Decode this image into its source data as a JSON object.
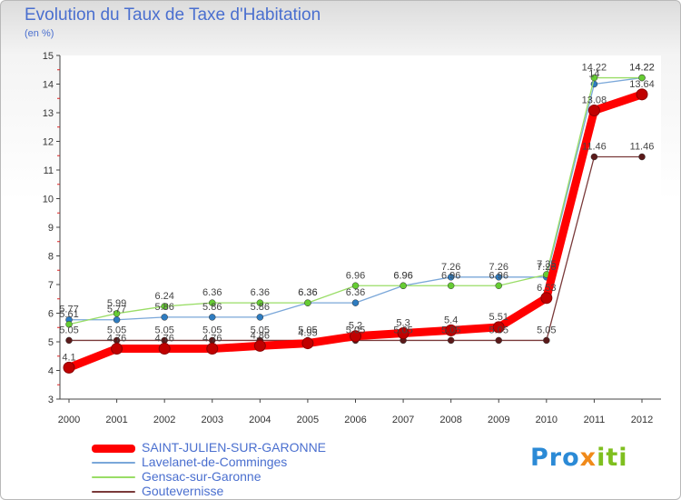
{
  "chart_data": {
    "type": "line",
    "title": "Evolution du Taux de Taxe d'Habitation",
    "subtitle": "(en %)",
    "x": [
      "2000",
      "2001",
      "2002",
      "2003",
      "2004",
      "2005",
      "2006",
      "2007",
      "2008",
      "2009",
      "2010",
      "2011",
      "2012"
    ],
    "ylim": [
      3,
      15
    ],
    "yticks": [
      3,
      4,
      5,
      6,
      7,
      8,
      9,
      10,
      11,
      12,
      13,
      14,
      15
    ],
    "grid": false,
    "legend_position": "bottom-left",
    "series": [
      {
        "name": "SAINT-JULIEN-SUR-GARONNE",
        "color": "#ff0000",
        "marker": "#c00000",
        "values": [
          4.1,
          4.76,
          4.76,
          4.76,
          4.86,
          4.95,
          5.2,
          5.3,
          5.4,
          5.51,
          6.53,
          13.08,
          13.64
        ],
        "labels": [
          "4.1",
          "4.76",
          "4.76",
          "4.76",
          "4.86",
          "4.95",
          "5.2",
          "5.3",
          "5.4",
          "5.51",
          "6.53",
          "13.08",
          "13.64"
        ]
      },
      {
        "name": "Lavelanet-de-Comminges",
        "color": "#7aa7d9",
        "marker": "#2e7cc0",
        "values": [
          5.77,
          5.77,
          5.86,
          5.86,
          5.86,
          6.36,
          6.36,
          6.96,
          7.26,
          7.26,
          7.26,
          14.0,
          14.22
        ],
        "labels": [
          "5.77",
          "5.77",
          "5.86",
          "5.86",
          "5.86",
          "6.36",
          "6.36",
          "6.96",
          "7.26",
          "7.26",
          "7.26",
          "14",
          "14.22"
        ]
      },
      {
        "name": "Gensac-sur-Garonne",
        "color": "#99dd66",
        "marker": "#66cc33",
        "values": [
          5.61,
          5.99,
          6.24,
          6.36,
          6.36,
          6.36,
          6.96,
          6.96,
          6.96,
          6.96,
          7.35,
          14.22,
          14.22
        ],
        "labels": [
          "5.61",
          "5.99",
          "6.24",
          "6.36",
          "6.36",
          "6.36",
          "6.96",
          "6.96",
          "6.96",
          "6.96",
          "7.35",
          "14.22",
          "14.22"
        ]
      },
      {
        "name": "Goutevernisse",
        "color": "#7a3a3a",
        "marker": "#5a1a1a",
        "values": [
          5.05,
          5.05,
          5.05,
          5.05,
          5.05,
          5.05,
          5.05,
          5.05,
          5.05,
          5.05,
          5.05,
          11.46,
          11.46
        ],
        "labels": [
          "5.05",
          "5.05",
          "5.05",
          "5.05",
          "5.05",
          "5.05",
          "5.05",
          "5.05",
          "5.05",
          "5.05",
          "5.05",
          "11.46",
          "11.46"
        ]
      }
    ]
  },
  "brand": {
    "part1": "Pro",
    "part2": "x",
    "part3": "iti"
  }
}
